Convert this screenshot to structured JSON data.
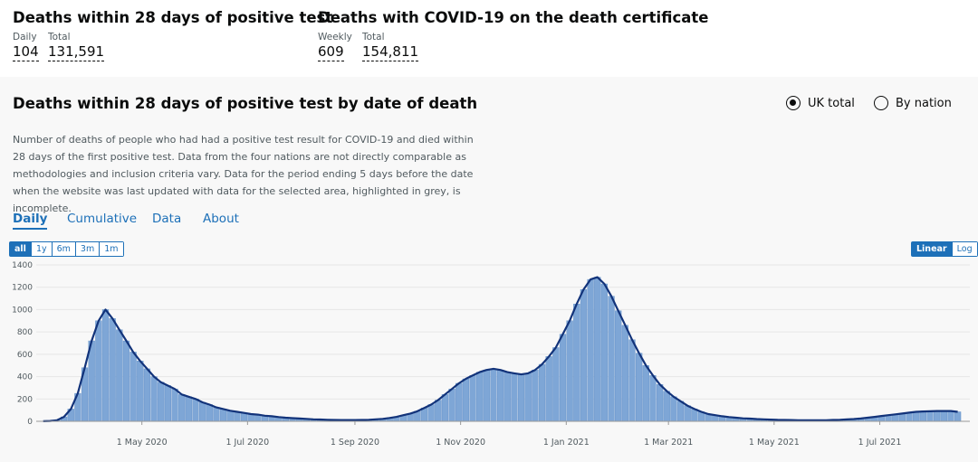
{
  "headline": {
    "cards": [
      {
        "title": "Deaths within 28 days of positive test",
        "metrics": [
          {
            "label": "Daily",
            "value": "104"
          },
          {
            "label": "Total",
            "value": "131,591"
          }
        ]
      },
      {
        "title": "Deaths with COVID-19 on the death certificate",
        "metrics": [
          {
            "label": "Weekly",
            "value": "609"
          },
          {
            "label": "Total",
            "value": "154,811"
          }
        ]
      }
    ]
  },
  "card": {
    "title": "Deaths within 28 days of positive test by date of death",
    "radio": [
      "UK total",
      "By nation"
    ],
    "description": "Number of deaths of people who had had a positive test result for COVID-19 and died within 28 days of the first positive test. Data from the four nations are not directly comparable as methodologies and inclusion criteria vary. Data for the period ending 5 days before the date when the website was last updated with data for the selected area, highlighted in grey, is incomplete.",
    "tabs": [
      "Daily",
      "Cumulative",
      "Data",
      "About"
    ],
    "range_buttons": [
      "all",
      "1y",
      "6m",
      "3m",
      "1m"
    ],
    "scale_buttons": [
      "Linear",
      "Log"
    ]
  },
  "chart_data": {
    "type": "bar",
    "color": "#7ea6d6",
    "line_color": "#12337a",
    "x": [
      "2020-03-05",
      "2020-03-09",
      "2020-03-13",
      "2020-03-17",
      "2020-03-21",
      "2020-03-25",
      "2020-03-29",
      "2020-04-02",
      "2020-04-06",
      "2020-04-10",
      "2020-04-14",
      "2020-04-18",
      "2020-04-22",
      "2020-04-26",
      "2020-04-30",
      "2020-05-04",
      "2020-05-08",
      "2020-05-12",
      "2020-05-16",
      "2020-05-20",
      "2020-05-24",
      "2020-05-28",
      "2020-06-01",
      "2020-06-05",
      "2020-06-09",
      "2020-06-13",
      "2020-06-17",
      "2020-06-21",
      "2020-06-25",
      "2020-06-29",
      "2020-07-03",
      "2020-07-07",
      "2020-07-11",
      "2020-07-15",
      "2020-07-19",
      "2020-07-23",
      "2020-07-27",
      "2020-07-31",
      "2020-08-04",
      "2020-08-08",
      "2020-08-12",
      "2020-08-16",
      "2020-08-20",
      "2020-08-24",
      "2020-08-28",
      "2020-09-01",
      "2020-09-05",
      "2020-09-09",
      "2020-09-13",
      "2020-09-17",
      "2020-09-21",
      "2020-09-25",
      "2020-09-29",
      "2020-10-03",
      "2020-10-07",
      "2020-10-11",
      "2020-10-15",
      "2020-10-19",
      "2020-10-23",
      "2020-10-27",
      "2020-10-31",
      "2020-11-04",
      "2020-11-08",
      "2020-11-12",
      "2020-11-16",
      "2020-11-20",
      "2020-11-24",
      "2020-11-28",
      "2020-12-02",
      "2020-12-06",
      "2020-12-10",
      "2020-12-14",
      "2020-12-18",
      "2020-12-22",
      "2020-12-26",
      "2020-12-30",
      "2021-01-03",
      "2021-01-07",
      "2021-01-11",
      "2021-01-15",
      "2021-01-19",
      "2021-01-23",
      "2021-01-27",
      "2021-01-31",
      "2021-02-04",
      "2021-02-08",
      "2021-02-12",
      "2021-02-16",
      "2021-02-20",
      "2021-02-24",
      "2021-02-28",
      "2021-03-04",
      "2021-03-08",
      "2021-03-12",
      "2021-03-16",
      "2021-03-20",
      "2021-03-24",
      "2021-03-28",
      "2021-04-01",
      "2021-04-05",
      "2021-04-09",
      "2021-04-13",
      "2021-04-17",
      "2021-04-21",
      "2021-04-25",
      "2021-04-29",
      "2021-05-03",
      "2021-05-07",
      "2021-05-11",
      "2021-05-15",
      "2021-05-19",
      "2021-05-23",
      "2021-05-27",
      "2021-05-31",
      "2021-06-04",
      "2021-06-08",
      "2021-06-12",
      "2021-06-16",
      "2021-06-20",
      "2021-06-24",
      "2021-06-28",
      "2021-07-02",
      "2021-07-06",
      "2021-07-10",
      "2021-07-14",
      "2021-07-18",
      "2021-07-22",
      "2021-07-26",
      "2021-07-30",
      "2021-08-03",
      "2021-08-07",
      "2021-08-11",
      "2021-08-15"
    ],
    "values": [
      1,
      3,
      10,
      40,
      110,
      250,
      480,
      720,
      900,
      1000,
      920,
      820,
      720,
      620,
      540,
      470,
      400,
      350,
      320,
      290,
      240,
      220,
      200,
      170,
      150,
      125,
      110,
      95,
      85,
      75,
      65,
      60,
      50,
      45,
      38,
      32,
      28,
      25,
      22,
      18,
      16,
      14,
      12,
      11,
      11,
      11,
      12,
      14,
      18,
      22,
      30,
      40,
      55,
      70,
      90,
      120,
      150,
      190,
      240,
      290,
      340,
      380,
      410,
      440,
      460,
      470,
      460,
      440,
      430,
      420,
      430,
      460,
      510,
      580,
      660,
      780,
      900,
      1050,
      1180,
      1270,
      1290,
      1230,
      1120,
      990,
      860,
      730,
      610,
      500,
      410,
      330,
      270,
      220,
      180,
      140,
      110,
      85,
      65,
      55,
      45,
      38,
      32,
      27,
      24,
      20,
      18,
      15,
      13,
      12,
      11,
      10,
      10,
      10,
      10,
      10,
      12,
      14,
      17,
      20,
      25,
      32,
      40,
      48,
      55,
      62,
      70,
      78,
      85,
      88,
      90,
      92,
      92,
      92,
      85
    ],
    "xlim": [
      "2020-03-01",
      "2021-08-22"
    ],
    "xticks": [
      {
        "value": "2020-05-01",
        "label": "1 May 2020"
      },
      {
        "value": "2020-07-01",
        "label": "1 Jul 2020"
      },
      {
        "value": "2020-09-01",
        "label": "1 Sep 2020"
      },
      {
        "value": "2020-11-01",
        "label": "1 Nov 2020"
      },
      {
        "value": "2021-01-01",
        "label": "1 Jan 2021"
      },
      {
        "value": "2021-03-01",
        "label": "1 Mar 2021"
      },
      {
        "value": "2021-05-01",
        "label": "1 May 2021"
      },
      {
        "value": "2021-07-01",
        "label": "1 Jul 2021"
      }
    ],
    "ylim": [
      0,
      1400
    ],
    "yticks": [
      0,
      200,
      400,
      600,
      800,
      1000,
      1200,
      1400
    ],
    "grid": true
  }
}
